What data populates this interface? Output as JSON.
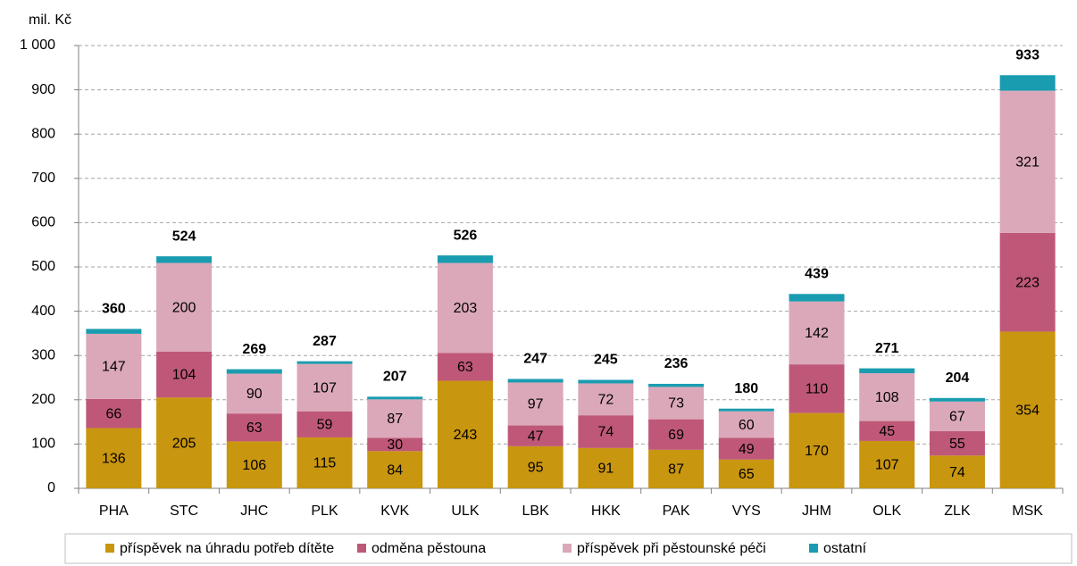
{
  "chart_data": {
    "type": "stacked_bar",
    "y_axis_label": "mil. Kč",
    "categories": [
      "PHA",
      "STC",
      "JHC",
      "PLK",
      "KVK",
      "ULK",
      "LBK",
      "HKK",
      "PAK",
      "VYS",
      "JHM",
      "OLK",
      "ZLK",
      "MSK"
    ],
    "series": [
      {
        "name": "příspěvek na úhradu potřeb dítěte",
        "color": "#c9960f",
        "labeled": true,
        "values": [
          136,
          205,
          106,
          115,
          84,
          243,
          95,
          91,
          87,
          65,
          170,
          107,
          74,
          354
        ]
      },
      {
        "name": "odměna pěstouna",
        "color": "#bf5878",
        "labeled": true,
        "values": [
          66,
          104,
          63,
          59,
          30,
          63,
          47,
          74,
          69,
          49,
          110,
          45,
          55,
          223
        ]
      },
      {
        "name": "příspěvek při pěstounské péči",
        "color": "#dba8b9",
        "labeled": true,
        "values": [
          147,
          200,
          90,
          107,
          87,
          203,
          97,
          72,
          73,
          60,
          142,
          108,
          67,
          321
        ]
      },
      {
        "name": "ostatní",
        "color": "#1a9cb0",
        "labeled": false,
        "values": [
          11,
          15,
          10,
          6,
          6,
          17,
          8,
          8,
          7,
          6,
          17,
          11,
          8,
          35
        ]
      }
    ],
    "totals": [
      360,
      524,
      269,
      287,
      207,
      526,
      247,
      245,
      236,
      180,
      439,
      271,
      204,
      933
    ],
    "ylim": [
      0,
      1000
    ],
    "yticks": [
      0,
      100,
      200,
      300,
      400,
      500,
      600,
      700,
      800,
      900,
      {
        "value": 1000,
        "label": "1 000"
      }
    ],
    "grid": true,
    "legend": "bottom"
  }
}
